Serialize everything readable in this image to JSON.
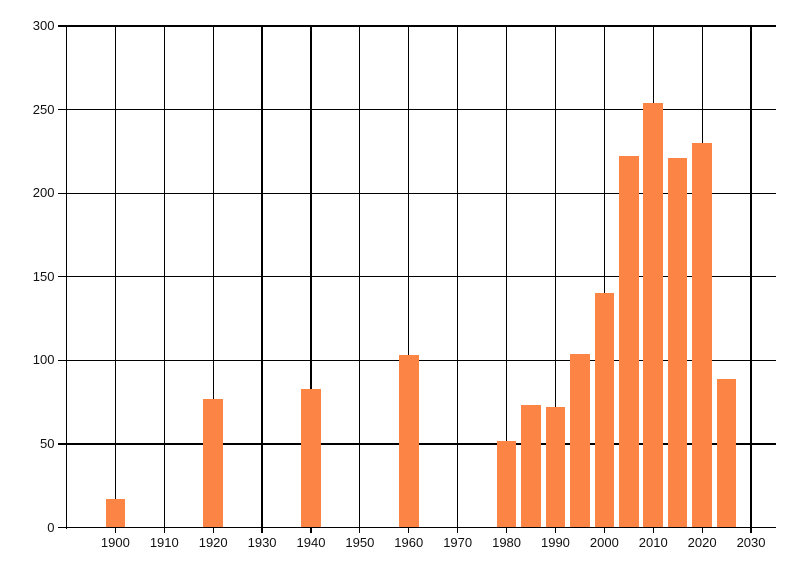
{
  "chart_data": {
    "type": "bar",
    "title": "",
    "xlabel": "",
    "ylabel": "",
    "x": [
      1900,
      1920,
      1940,
      1960,
      1980,
      1985,
      1990,
      1995,
      2000,
      2005,
      2010,
      2015,
      2020,
      2025
    ],
    "values": [
      17,
      77,
      83,
      103,
      52,
      73,
      72,
      104,
      140,
      222,
      254,
      221,
      230,
      89
    ],
    "bar_width_years": 4,
    "bar_color": "#FC8444",
    "xlim": [
      1890,
      2035
    ],
    "ylim": [
      0,
      300
    ],
    "x_ticks": [
      1900,
      1910,
      1920,
      1930,
      1940,
      1950,
      1960,
      1970,
      1980,
      1990,
      2000,
      2010,
      2020,
      2030
    ],
    "x_tick_labels": [
      "1900",
      "1910",
      "1920",
      "1930",
      "1940",
      "1950",
      "1960",
      "1970",
      "1980",
      "1990",
      "2000",
      "2010",
      "2020",
      "2030"
    ],
    "y_ticks": [
      0,
      50,
      100,
      150,
      200,
      250,
      300
    ],
    "y_tick_labels": [
      "0",
      "50",
      "100",
      "150",
      "200",
      "250",
      "300"
    ],
    "grid": true,
    "grid_color": "#000000",
    "axis_color": "#000000",
    "label_color": "#111111",
    "background": "#FFFFFF",
    "legend": null
  }
}
